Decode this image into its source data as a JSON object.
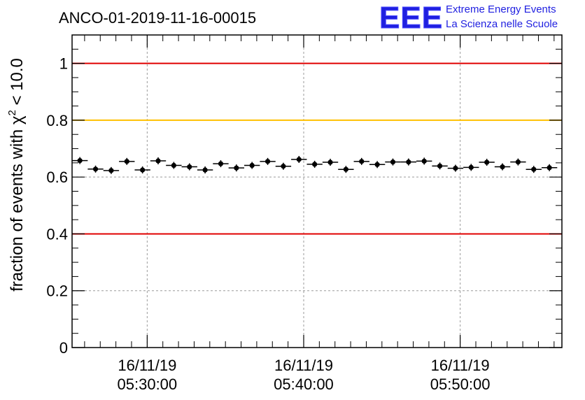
{
  "chart_data": {
    "type": "scatter",
    "title": "ANCO-01-2019-11-16-00015",
    "ylabel_prefix": "fraction of events with ",
    "ylabel_chi": "χ",
    "ylabel_sup": "2",
    "ylabel_suffix": " < 10.0",
    "xlabel": "",
    "ylim": [
      0,
      1.1
    ],
    "y_ticks": [
      {
        "value": 0,
        "label": "0"
      },
      {
        "value": 0.2,
        "label": "0.2"
      },
      {
        "value": 0.4,
        "label": "0.4"
      },
      {
        "value": 0.6,
        "label": "0.6"
      },
      {
        "value": 0.8,
        "label": "0.8"
      },
      {
        "value": 1.0,
        "label": "1"
      }
    ],
    "x_range_minutes": [
      24.2,
      55.5
    ],
    "x_ticks": [
      {
        "value": 29,
        "date": "16/11/19",
        "time": "05:30:00"
      },
      {
        "value": 39,
        "date": "16/11/19",
        "time": "05:40:00"
      },
      {
        "value": 49,
        "date": "16/11/19",
        "time": "05:50:00"
      }
    ],
    "bin_width_minutes": 1.0,
    "reference_lines": [
      {
        "value": 1.0,
        "color": "#e00000"
      },
      {
        "value": 0.8,
        "color": "#ffc000"
      },
      {
        "value": 0.4,
        "color": "#e00000"
      }
    ],
    "series": [
      {
        "name": "fraction",
        "x": [
          24.7,
          25.7,
          26.7,
          27.7,
          28.7,
          29.7,
          30.7,
          31.7,
          32.7,
          33.7,
          34.7,
          35.7,
          36.7,
          37.7,
          38.7,
          39.7,
          40.7,
          41.7,
          42.7,
          43.7,
          44.7,
          45.7,
          46.7,
          47.7,
          48.7,
          49.7,
          50.7,
          51.7,
          52.7,
          53.7,
          54.7
        ],
        "y": [
          0.658,
          0.628,
          0.623,
          0.655,
          0.625,
          0.657,
          0.641,
          0.636,
          0.625,
          0.647,
          0.632,
          0.641,
          0.655,
          0.638,
          0.662,
          0.645,
          0.652,
          0.627,
          0.655,
          0.644,
          0.653,
          0.653,
          0.656,
          0.639,
          0.631,
          0.634,
          0.652,
          0.636,
          0.653,
          0.627,
          0.633
        ]
      }
    ]
  },
  "logo": {
    "mark": "EEE",
    "line1": "Extreme Energy Events",
    "line2": "La Scienza nelle Scuole"
  },
  "colors": {
    "red_line": "#e00000",
    "yellow_line": "#ffc000",
    "logo_blue": "#1f1fe0"
  }
}
